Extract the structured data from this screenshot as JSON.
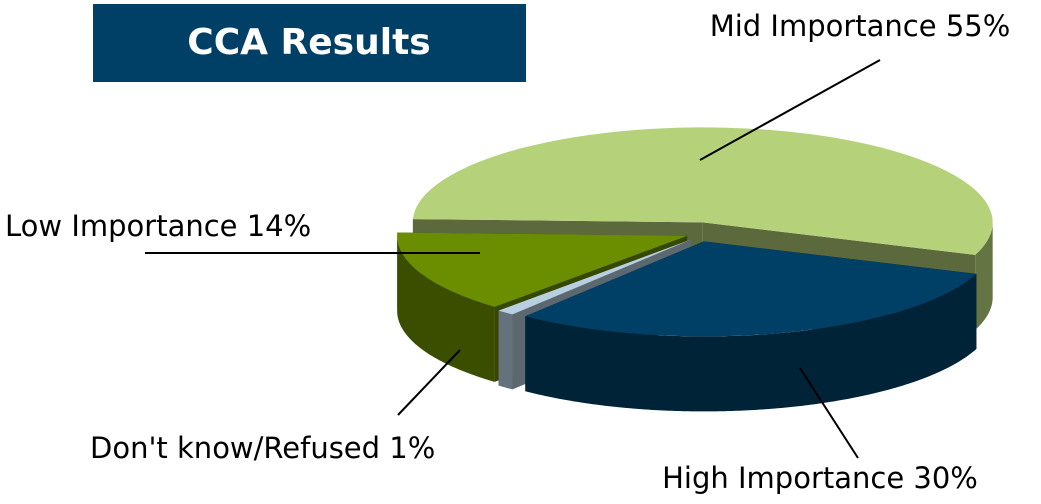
{
  "chart_data": {
    "type": "pie3d",
    "title": "CCA Results",
    "categories": [
      "High Importance",
      "Don't know/Refused",
      "Low Importance",
      "Mid Importance"
    ],
    "values": [
      30,
      1,
      14,
      55
    ],
    "value_labels": [
      "30%",
      "1%",
      "14%",
      "55%"
    ],
    "colors": [
      "#003f66",
      "#b8cfe0",
      "#6b8e00",
      "#b5d27a"
    ]
  }
}
